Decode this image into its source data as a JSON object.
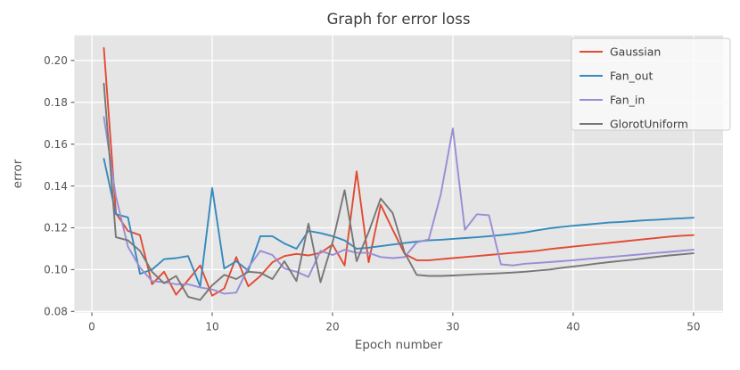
{
  "title": "Graph for error loss",
  "chart_data": {
    "type": "line",
    "title": "Graph for error loss",
    "xlabel": "Epoch number",
    "ylabel": "error",
    "x_ticks": [
      0,
      10,
      20,
      30,
      40,
      50
    ],
    "y_ticks": [
      0.08,
      0.1,
      0.12,
      0.14,
      0.16,
      0.18,
      0.2
    ],
    "xlim": [
      -1.45,
      52.45
    ],
    "ylim": [
      0.0795,
      0.212
    ],
    "grid": true,
    "legend_position": "upper right",
    "plot_background": "#e5e5e5",
    "grid_color": "#ffffff",
    "tick_text_color": "#555555",
    "title_color": "#3d3d3d",
    "x_start": 1,
    "series": [
      {
        "name": "Gaussian",
        "color": "#e24a33",
        "values": [
          0.206,
          0.127,
          0.1185,
          0.1165,
          0.093,
          0.099,
          0.088,
          0.095,
          0.102,
          0.0875,
          0.091,
          0.106,
          0.092,
          0.097,
          0.1035,
          0.1065,
          0.1075,
          0.1068,
          0.108,
          0.112,
          0.102,
          0.147,
          0.1035,
          0.131,
          0.119,
          0.1075,
          0.1045,
          0.1045,
          0.105,
          0.1055,
          0.106,
          0.1065,
          0.107,
          0.1075,
          0.108,
          0.1085,
          0.109,
          0.1098,
          0.1104,
          0.111,
          0.1116,
          0.1122,
          0.1128,
          0.1134,
          0.114,
          0.1146,
          0.1152,
          0.1158,
          0.1162,
          0.1165
        ]
      },
      {
        "name": "Fan_out",
        "color": "#348abd",
        "values": [
          0.153,
          0.1265,
          0.125,
          0.098,
          0.1,
          0.105,
          0.1055,
          0.1065,
          0.092,
          0.139,
          0.1005,
          0.104,
          0.0995,
          0.116,
          0.116,
          0.1125,
          0.11,
          0.1185,
          0.1175,
          0.116,
          0.114,
          0.11,
          0.1105,
          0.1112,
          0.112,
          0.1127,
          0.1134,
          0.114,
          0.1143,
          0.1147,
          0.1151,
          0.1155,
          0.116,
          0.1165,
          0.1171,
          0.1178,
          0.1188,
          0.1197,
          0.1204,
          0.121,
          0.1215,
          0.122,
          0.1225,
          0.1228,
          0.1232,
          0.1236,
          0.1239,
          0.1242,
          0.1245,
          0.1248
        ]
      },
      {
        "name": "Fan_in",
        "color": "#988ed5",
        "values": [
          0.173,
          0.135,
          0.111,
          0.101,
          0.0945,
          0.094,
          0.093,
          0.093,
          0.0915,
          0.0905,
          0.0885,
          0.089,
          0.101,
          0.109,
          0.107,
          0.1005,
          0.099,
          0.0965,
          0.109,
          0.107,
          0.1095,
          0.108,
          0.108,
          0.106,
          0.1055,
          0.106,
          0.113,
          0.1145,
          0.136,
          0.1675,
          0.119,
          0.1265,
          0.126,
          0.1025,
          0.102,
          0.1028,
          0.1032,
          0.1036,
          0.104,
          0.1045,
          0.105,
          0.1055,
          0.106,
          0.1065,
          0.107,
          0.1075,
          0.108,
          0.1085,
          0.109,
          0.1095
        ]
      },
      {
        "name": "GlorotUniform",
        "color": "#777777",
        "values": [
          0.189,
          0.1155,
          0.114,
          0.109,
          0.099,
          0.0935,
          0.097,
          0.087,
          0.0855,
          0.0925,
          0.0975,
          0.0955,
          0.099,
          0.0985,
          0.0955,
          0.104,
          0.0945,
          0.122,
          0.094,
          0.113,
          0.138,
          0.104,
          0.118,
          0.134,
          0.127,
          0.108,
          0.0975,
          0.097,
          0.097,
          0.0972,
          0.0975,
          0.0978,
          0.098,
          0.0983,
          0.0986,
          0.099,
          0.0995,
          0.1,
          0.1008,
          0.1015,
          0.1022,
          0.1029,
          0.1036,
          0.1042,
          0.1048,
          0.1055,
          0.1062,
          0.1068,
          0.1073,
          0.1078
        ]
      }
    ]
  }
}
